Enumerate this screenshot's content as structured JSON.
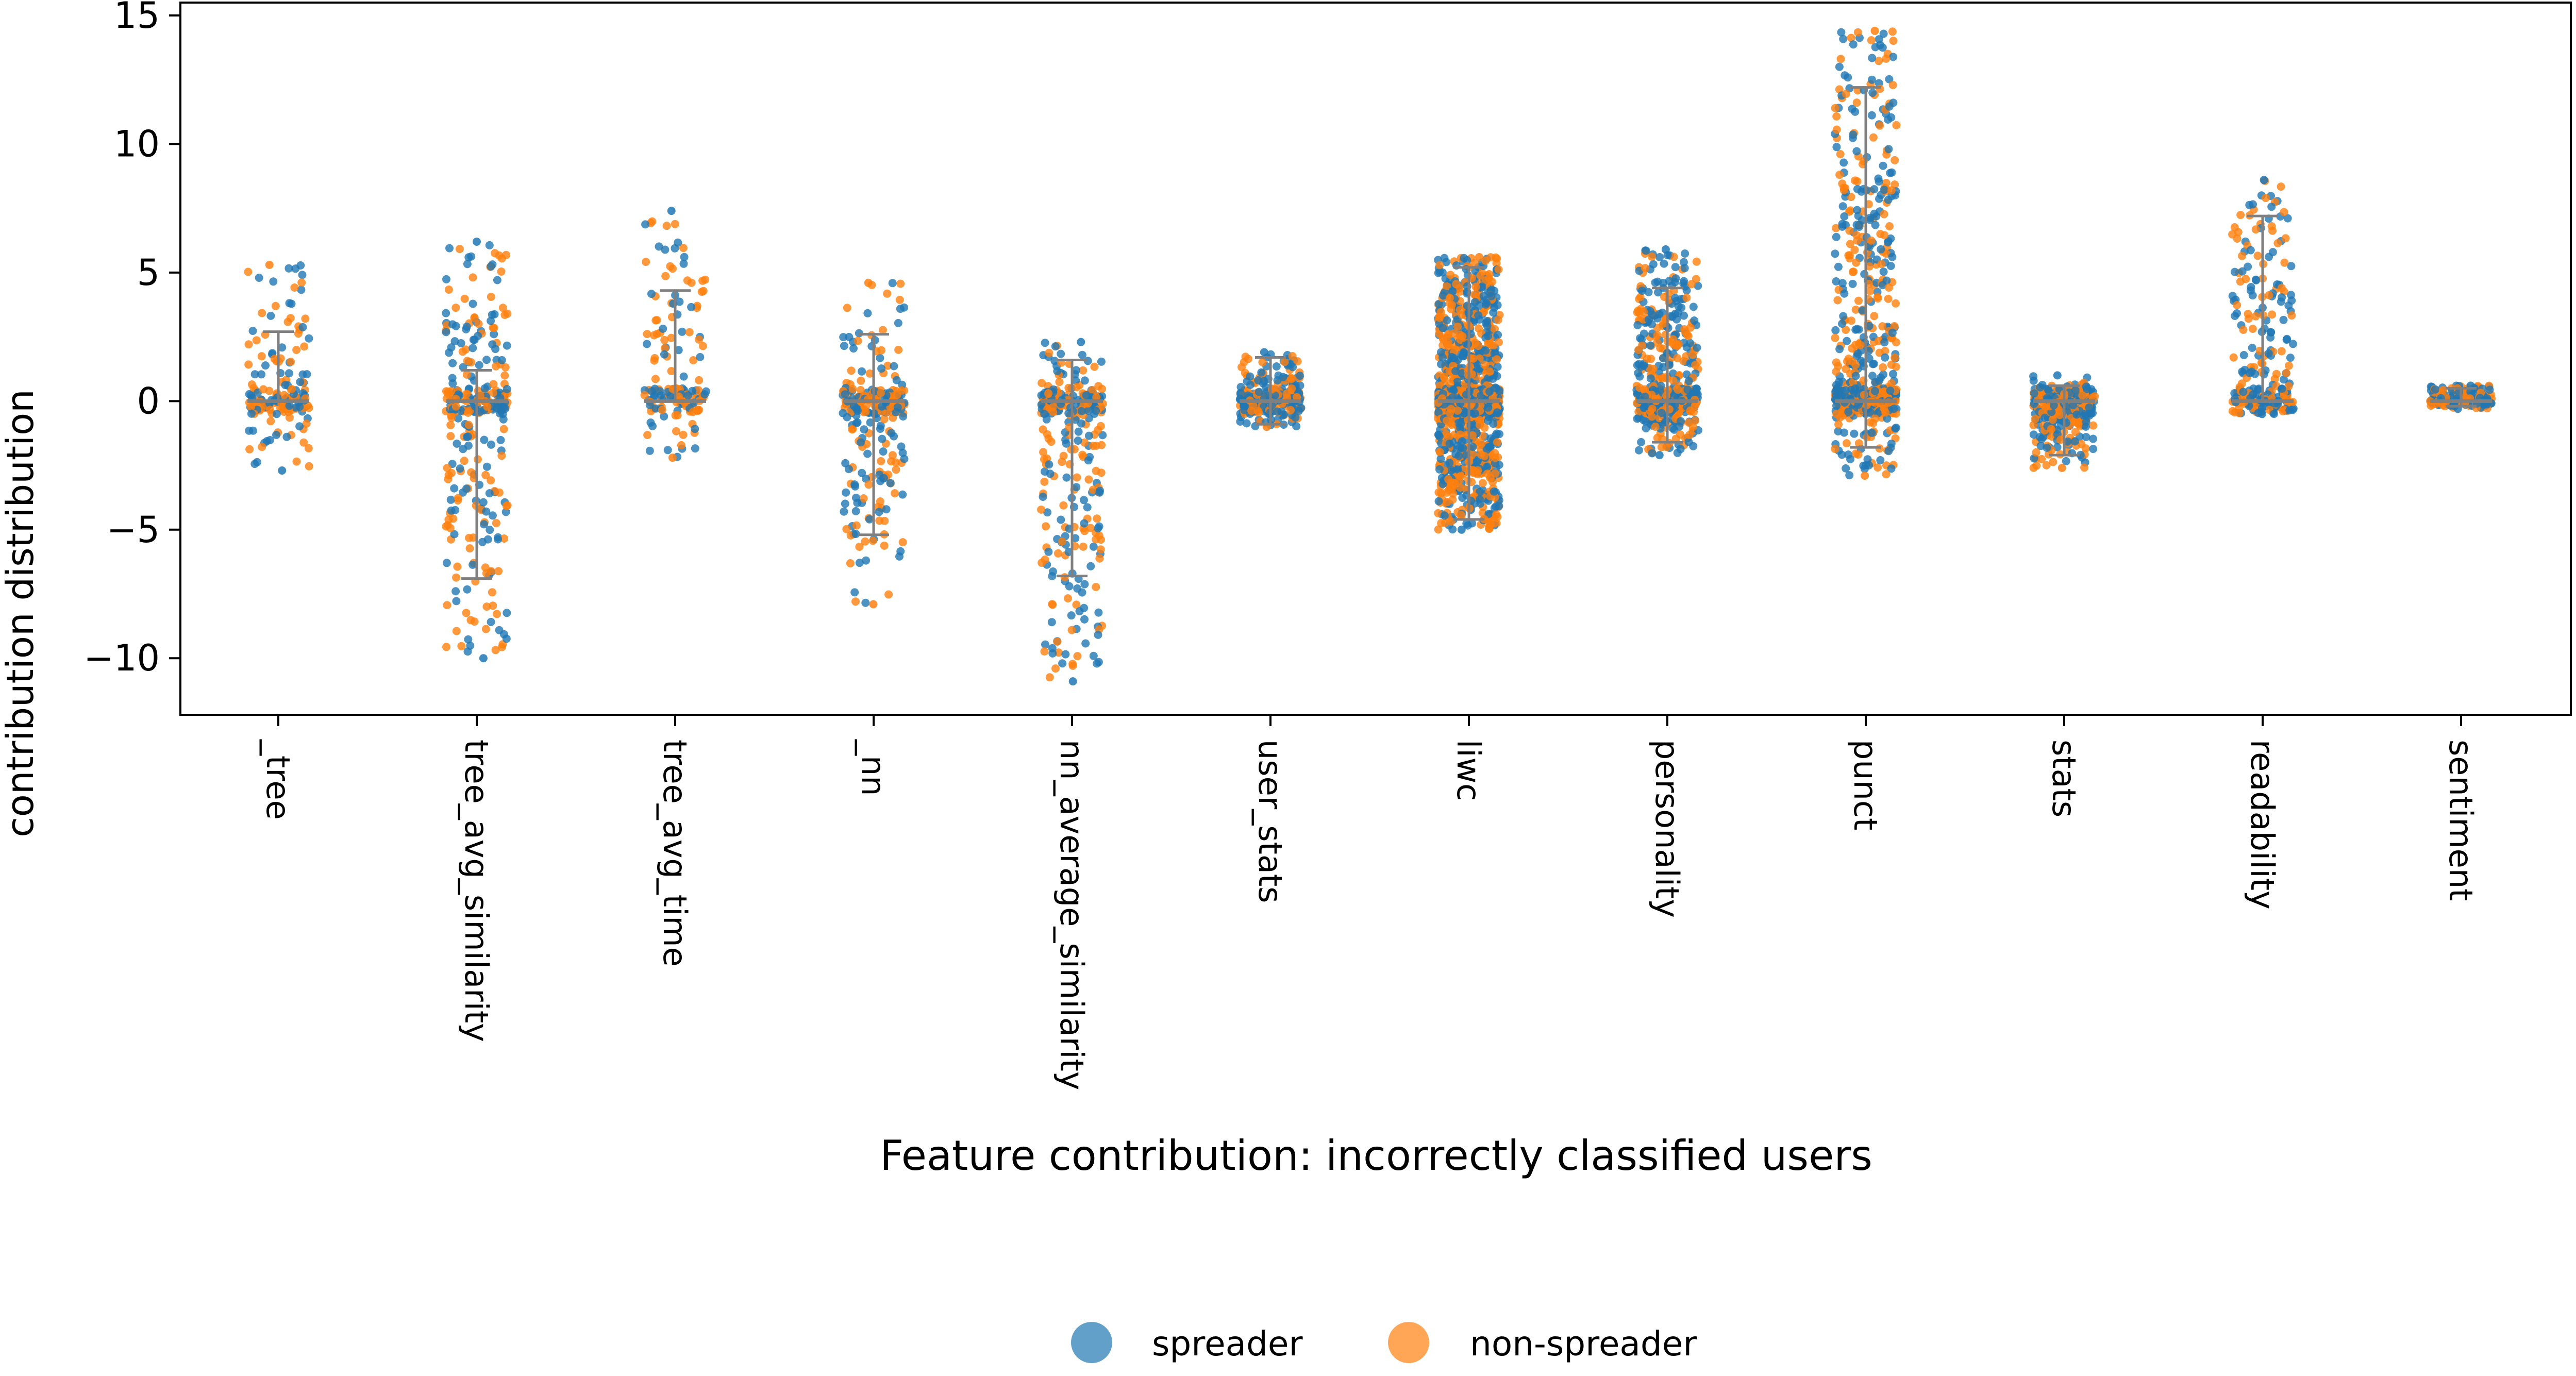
{
  "chart_data": {
    "type": "scatter",
    "subtype": "strip-plot-with-error-bars",
    "xlabel": "Feature contribution: incorrectly classified users",
    "ylabel": "contribution distribution",
    "ylim": [
      -12.2,
      15.5
    ],
    "yticks": [
      15,
      10,
      5,
      0,
      -5,
      -10
    ],
    "ytick_labels": [
      "15",
      "10",
      "5",
      "0",
      "−5",
      "−10"
    ],
    "grid": false,
    "legend_position": "bottom-center",
    "colors": {
      "spreader": "#1f77b4",
      "non-spreader": "#ff7f0e",
      "bar": "#808080"
    },
    "legend": [
      {
        "label": "spreader",
        "color": "#1f77b4"
      },
      {
        "label": "non-spreader",
        "color": "#ff7f0e"
      }
    ],
    "categories": [
      "_tree",
      "tree_avg_similarity",
      "tree_avg_time",
      "_nn",
      "nn_average_similarity",
      "user_stats",
      "liwc",
      "personality",
      "punct",
      "stats",
      "readability",
      "sentiment"
    ],
    "features": [
      {
        "name": "_tree",
        "min": -2.7,
        "max": 5.3,
        "bar_low": 0,
        "bar_high": 2.7,
        "n": 160
      },
      {
        "name": "tree_avg_similarity",
        "min": -10.0,
        "max": 6.2,
        "bar_low": -6.9,
        "bar_high": 1.2,
        "n": 320
      },
      {
        "name": "tree_avg_time",
        "min": -2.2,
        "max": 7.4,
        "bar_low": 0,
        "bar_high": 4.3,
        "n": 150
      },
      {
        "name": "_nn",
        "min": -7.9,
        "max": 4.6,
        "bar_low": -5.2,
        "bar_high": 2.6,
        "n": 260
      },
      {
        "name": "nn_average_similarity",
        "min": -10.9,
        "max": 2.3,
        "bar_low": -6.8,
        "bar_high": 1.6,
        "n": 300
      },
      {
        "name": "user_stats",
        "min": -1.0,
        "max": 1.9,
        "bar_low": -0.9,
        "bar_high": 1.7,
        "n": 260
      },
      {
        "name": "liwc",
        "min": -5.0,
        "max": 5.6,
        "bar_low": -4.6,
        "bar_high": 5.2,
        "n": 1400
      },
      {
        "name": "personality",
        "min": -2.1,
        "max": 5.9,
        "bar_low": -1.6,
        "bar_high": 4.4,
        "n": 520
      },
      {
        "name": "punct",
        "min": -2.9,
        "max": 14.4,
        "bar_low": -1.8,
        "bar_high": 12.2,
        "n": 650
      },
      {
        "name": "stats",
        "min": -2.6,
        "max": 1.0,
        "bar_low": -2.1,
        "bar_high": 0.6,
        "n": 300
      },
      {
        "name": "readability",
        "min": -0.5,
        "max": 8.6,
        "bar_low": 0,
        "bar_high": 7.2,
        "n": 240
      },
      {
        "name": "sentiment",
        "min": -0.3,
        "max": 0.6,
        "bar_low": -0.2,
        "bar_high": 0.5,
        "n": 180
      }
    ]
  }
}
